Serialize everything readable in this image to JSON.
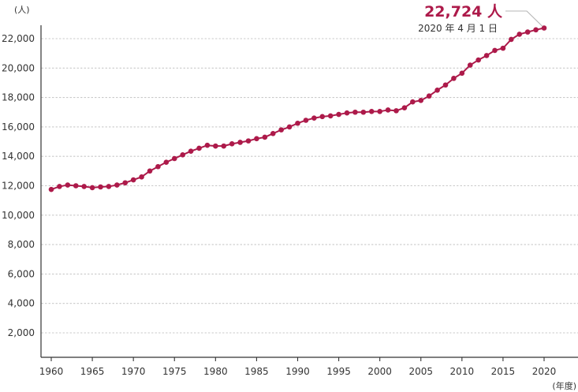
{
  "colors": {
    "series": "#ad1a4a",
    "axis": "#333333",
    "grid": "#c8c8c8",
    "leader": "#b5b5b5"
  },
  "chart_data": {
    "type": "line",
    "title": "",
    "xlabel": "(年度)",
    "ylabel": "(人)",
    "xlim": [
      1958.5,
      2021.5
    ],
    "ylim": [
      0,
      23000
    ],
    "xticks": [
      1960,
      1965,
      1970,
      1975,
      1980,
      1985,
      1990,
      1995,
      2000,
      2005,
      2010,
      2015,
      2020
    ],
    "xtick_labels": [
      "1960",
      "1965",
      "1970",
      "1975",
      "1980",
      "1985",
      "1990",
      "1995",
      "2000",
      "2005",
      "2010",
      "2015",
      "2020"
    ],
    "yticks": [
      2000,
      4000,
      6000,
      8000,
      10000,
      12000,
      14000,
      16000,
      18000,
      20000,
      22000
    ],
    "ytick_labels": [
      "2,000",
      "4,000",
      "6,000",
      "8,000",
      "10,000",
      "12,000",
      "14,000",
      "16,000",
      "18,000",
      "20,000",
      "22,000"
    ],
    "grid": "horizontal dotted",
    "series": [
      {
        "x": [
          1960,
          1961,
          1962,
          1963,
          1964,
          1965,
          1966,
          1967,
          1968,
          1969,
          1970,
          1971,
          1972,
          1973,
          1974,
          1975,
          1976,
          1977,
          1978,
          1979,
          1980,
          1981,
          1982,
          1983,
          1984,
          1985,
          1986,
          1987,
          1988,
          1989,
          1990,
          1991,
          1992,
          1993,
          1994,
          1995,
          1996,
          1997,
          1998,
          1999,
          2000,
          2001,
          2002,
          2003,
          2004,
          2005,
          2006,
          2007,
          2008,
          2009,
          2010,
          2011,
          2012,
          2013,
          2014,
          2015,
          2016,
          2017,
          2018,
          2019,
          2020
        ],
        "values": [
          11750,
          11950,
          12050,
          12000,
          11950,
          11870,
          11920,
          11950,
          12050,
          12200,
          12400,
          12600,
          13000,
          13300,
          13600,
          13850,
          14100,
          14350,
          14550,
          14750,
          14700,
          14700,
          14850,
          14950,
          15050,
          15200,
          15300,
          15550,
          15800,
          16000,
          16250,
          16450,
          16600,
          16700,
          16750,
          16850,
          16950,
          17000,
          17000,
          17050,
          17050,
          17150,
          17100,
          17300,
          17700,
          17800,
          18100,
          18500,
          18850,
          19300,
          19650,
          20200,
          20550,
          20850,
          21200,
          21350,
          21950,
          22300,
          22450,
          22600,
          22724
        ]
      }
    ],
    "annotation": {
      "value_text": "22,724 人",
      "date_text": "2020 年 4 月 1 日",
      "x": 2020,
      "y": 22724
    }
  }
}
